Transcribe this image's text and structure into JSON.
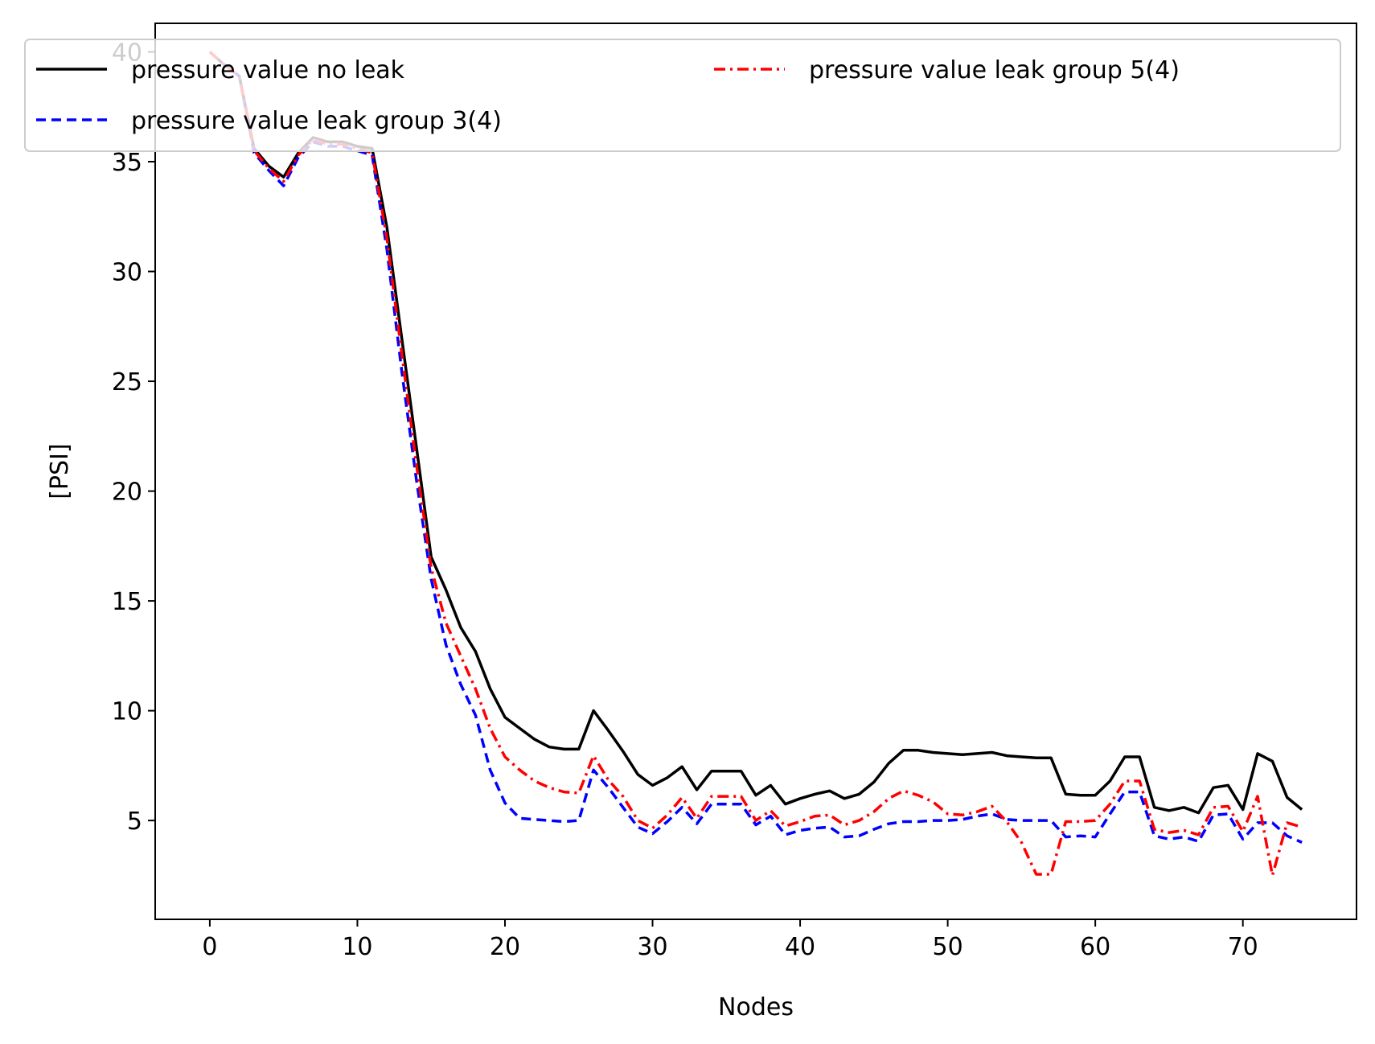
{
  "chart_data": {
    "type": "line",
    "title": "",
    "xlabel": "Nodes",
    "ylabel": "[PSI]",
    "xlim": [
      -3.7,
      77.7
    ],
    "ylim": [
      0.5,
      41.3
    ],
    "xticks": [
      0,
      10,
      20,
      30,
      40,
      50,
      60,
      70
    ],
    "yticks": [
      5,
      10,
      15,
      20,
      25,
      30,
      35,
      40
    ],
    "grid": false,
    "legend_position": "top",
    "x": [
      0,
      1,
      2,
      3,
      4,
      5,
      6,
      7,
      8,
      9,
      10,
      11,
      12,
      13,
      14,
      15,
      16,
      17,
      18,
      19,
      20,
      21,
      22,
      23,
      24,
      25,
      26,
      27,
      28,
      29,
      30,
      31,
      32,
      33,
      34,
      35,
      36,
      37,
      38,
      39,
      40,
      41,
      42,
      43,
      44,
      45,
      46,
      47,
      48,
      49,
      50,
      51,
      52,
      53,
      54,
      55,
      56,
      57,
      58,
      59,
      60,
      61,
      62,
      63,
      64,
      65,
      66,
      67,
      68,
      69,
      70,
      71,
      72,
      73,
      74
    ],
    "series": [
      {
        "name": "pressure value no leak",
        "color": "#000000",
        "dash": "solid",
        "values": [
          40.0,
          39.4,
          38.9,
          35.6,
          34.8,
          34.3,
          35.4,
          36.1,
          35.9,
          35.9,
          35.7,
          35.6,
          32.0,
          27.0,
          22.0,
          17.0,
          15.5,
          13.8,
          12.7,
          11.0,
          9.7,
          9.2,
          8.7,
          8.35,
          8.25,
          8.25,
          10.0,
          9.1,
          8.15,
          7.1,
          6.6,
          6.95,
          7.45,
          6.4,
          7.25,
          7.25,
          7.25,
          6.15,
          6.6,
          5.75,
          6.0,
          6.2,
          6.35,
          6.0,
          6.2,
          6.75,
          7.6,
          8.2,
          8.2,
          8.1,
          8.05,
          8.0,
          8.05,
          8.1,
          7.95,
          7.9,
          7.85,
          7.85,
          6.2,
          6.15,
          6.15,
          6.8,
          7.9,
          7.9,
          5.6,
          5.45,
          5.6,
          5.35,
          6.5,
          6.6,
          5.5,
          8.05,
          7.7,
          6.05,
          5.5
        ]
      },
      {
        "name": "pressure value leak group 3(4)",
        "color": "#0000ff",
        "dash": "dashed",
        "values": [
          40.0,
          39.4,
          38.9,
          35.4,
          34.6,
          33.9,
          35.2,
          35.9,
          35.7,
          35.7,
          35.5,
          35.3,
          31.0,
          25.5,
          20.5,
          16.0,
          13.0,
          11.2,
          9.8,
          7.3,
          5.8,
          5.1,
          5.05,
          5.0,
          4.95,
          5.0,
          7.3,
          6.5,
          5.6,
          4.7,
          4.4,
          4.95,
          5.6,
          4.85,
          5.75,
          5.75,
          5.75,
          4.8,
          5.2,
          4.35,
          4.55,
          4.65,
          4.7,
          4.25,
          4.3,
          4.6,
          4.85,
          4.95,
          4.95,
          5.0,
          5.0,
          5.05,
          5.2,
          5.3,
          5.05,
          5.0,
          5.0,
          5.0,
          4.25,
          4.3,
          4.25,
          5.3,
          6.3,
          6.3,
          4.3,
          4.15,
          4.25,
          4.05,
          5.25,
          5.3,
          4.15,
          4.9,
          4.9,
          4.3,
          4.0
        ]
      },
      {
        "name": "pressure value leak group 5(4)",
        "color": "#ff0000",
        "dash": "dashdot",
        "values": [
          40.0,
          39.4,
          38.9,
          35.5,
          34.7,
          34.1,
          35.3,
          36.0,
          35.8,
          35.8,
          35.6,
          35.4,
          31.5,
          26.3,
          21.2,
          16.5,
          14.0,
          12.5,
          11.0,
          9.2,
          7.9,
          7.3,
          6.8,
          6.5,
          6.3,
          6.25,
          7.95,
          6.85,
          6.1,
          5.0,
          4.65,
          5.25,
          6.05,
          5.1,
          6.1,
          6.1,
          6.1,
          5.0,
          5.45,
          4.75,
          4.95,
          5.2,
          5.25,
          4.8,
          5.0,
          5.4,
          6.0,
          6.35,
          6.15,
          5.85,
          5.3,
          5.25,
          5.4,
          5.65,
          4.95,
          4.0,
          2.55,
          2.55,
          4.95,
          4.95,
          5.0,
          5.75,
          6.8,
          6.8,
          4.6,
          4.45,
          4.55,
          4.35,
          5.6,
          5.65,
          4.5,
          6.1,
          2.5,
          4.9,
          4.7
        ]
      }
    ]
  }
}
